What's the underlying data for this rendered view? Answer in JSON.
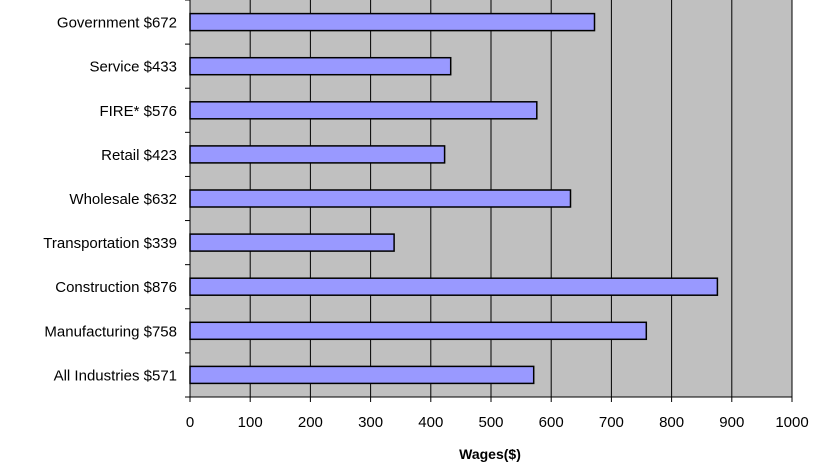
{
  "chart_data": {
    "type": "bar",
    "orientation": "horizontal",
    "categories": [
      "Government $672",
      "Service $433",
      "FIRE* $576",
      "Retail $423",
      "Wholesale $632",
      "Transportation $339",
      "Construction $876",
      "Manufacturing $758",
      "All Industries $571"
    ],
    "values": [
      672,
      433,
      576,
      423,
      632,
      339,
      876,
      758,
      571
    ],
    "title": "",
    "xlabel": "Wages($)",
    "ylabel": "",
    "xlim": [
      0,
      1000
    ],
    "xticks": [
      "0",
      "100",
      "200",
      "300",
      "400",
      "500",
      "600",
      "700",
      "800",
      "900",
      "1000"
    ],
    "grid": "vertical",
    "legend": "none",
    "colors": {
      "bar_fill": "#9999ff",
      "bar_stroke": "#000000",
      "plot_background": "#c0c0c0",
      "gridline": "#000000"
    }
  }
}
